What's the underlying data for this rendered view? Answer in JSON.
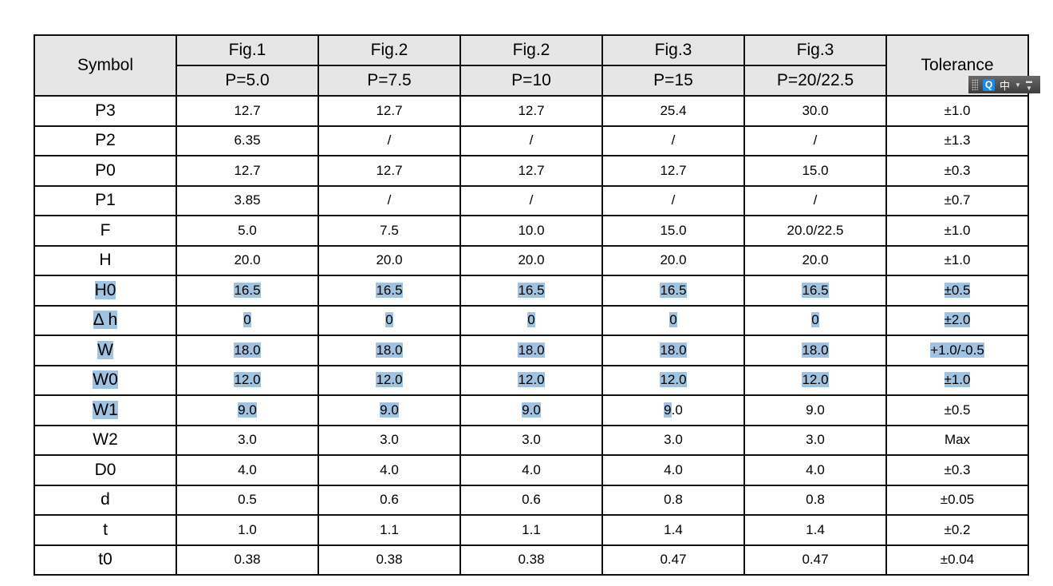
{
  "header": {
    "symbol": "Symbol",
    "tolerance": "Tolerance",
    "figs": [
      "Fig.1",
      "Fig.2",
      "Fig.2",
      "Fig.3",
      "Fig.3"
    ],
    "pitches": [
      "P=5.0",
      "P=7.5",
      "P=10",
      "P=15",
      "P=20/22.5"
    ]
  },
  "rows": [
    {
      "symbol": "P3",
      "values": [
        "12.7",
        "12.7",
        "12.7",
        "25.4",
        "30.0"
      ],
      "tolerance": "±1.0"
    },
    {
      "symbol": "P2",
      "values": [
        "6.35",
        "/",
        "/",
        "/",
        "/"
      ],
      "tolerance": "±1.3"
    },
    {
      "symbol": "P0",
      "values": [
        "12.7",
        "12.7",
        "12.7",
        "12.7",
        "15.0"
      ],
      "tolerance": "±0.3"
    },
    {
      "symbol": "P1",
      "values": [
        "3.85",
        "/",
        "/",
        "/",
        "/"
      ],
      "tolerance": "±0.7"
    },
    {
      "symbol": "F",
      "values": [
        "5.0",
        "7.5",
        "10.0",
        "15.0",
        "20.0/22.5"
      ],
      "tolerance": "±1.0"
    },
    {
      "symbol": "H",
      "values": [
        "20.0",
        "20.0",
        "20.0",
        "20.0",
        "20.0"
      ],
      "tolerance": "±1.0"
    },
    {
      "symbol": "H0",
      "values": [
        "16.5",
        "16.5",
        "16.5",
        "16.5",
        "16.5"
      ],
      "tolerance": "±0.5"
    },
    {
      "symbol": "Δ h",
      "values": [
        "0",
        "0",
        "0",
        "0",
        "0"
      ],
      "tolerance": "±2.0"
    },
    {
      "symbol": "W",
      "values": [
        "18.0",
        "18.0",
        "18.0",
        "18.0",
        "18.0"
      ],
      "tolerance": "+1.0/-0.5"
    },
    {
      "symbol": "W0",
      "values": [
        "12.0",
        "12.0",
        "12.0",
        "12.0",
        "12.0"
      ],
      "tolerance": "±1.0"
    },
    {
      "symbol": "W1",
      "values": [
        "9.0",
        "9.0",
        "9.0",
        "9.0",
        "9.0"
      ],
      "tolerance": "±0.5"
    },
    {
      "symbol": "W2",
      "values": [
        "3.0",
        "3.0",
        "3.0",
        "3.0",
        "3.0"
      ],
      "tolerance": "Max"
    },
    {
      "symbol": "D0",
      "values": [
        "4.0",
        "4.0",
        "4.0",
        "4.0",
        "4.0"
      ],
      "tolerance": "±0.3"
    },
    {
      "symbol": "d",
      "values": [
        "0.5",
        "0.6",
        "0.6",
        "0.8",
        "0.8"
      ],
      "tolerance": "±0.05"
    },
    {
      "symbol": "t",
      "values": [
        "1.0",
        "1.1",
        "1.1",
        "1.4",
        "1.4"
      ],
      "tolerance": "±0.2"
    },
    {
      "symbol": "t0",
      "values": [
        "0.38",
        "0.38",
        "0.38",
        "0.47",
        "0.47"
      ],
      "tolerance": "±0.04"
    }
  ],
  "selection": {
    "full_rows": [
      6,
      7,
      8,
      9
    ],
    "partial_row": 10,
    "highlight_color": "#9fc3e0"
  },
  "ime_toolbar": {
    "logo": "Q",
    "mode": "中",
    "icons": [
      "grip-icon",
      "ime-logo-icon",
      "chinese-mode-icon",
      "dropdown-icon",
      "minimize-icon"
    ]
  }
}
